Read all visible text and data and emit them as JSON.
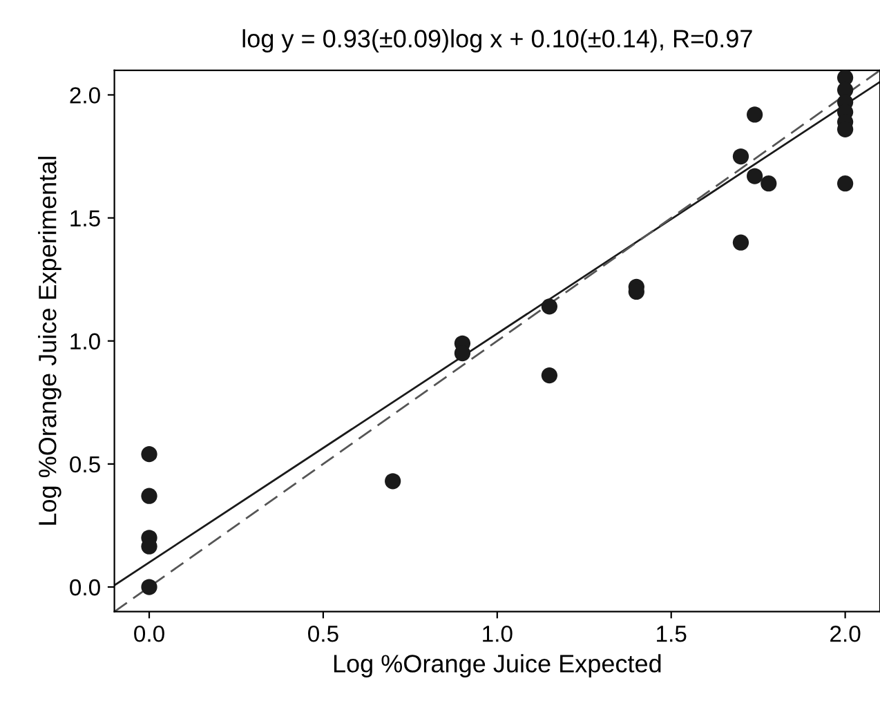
{
  "chart_data": {
    "type": "scatter",
    "title": "log y = 0.93(±0.09)log x + 0.10(±0.14), R=0.97",
    "xlabel": "Log %Orange Juice Expected",
    "ylabel": "Log %Orange Juice Experimental",
    "xlim": [
      -0.1,
      2.1
    ],
    "ylim": [
      -0.1,
      2.1
    ],
    "xticks": [
      {
        "value": 0,
        "label": "0.0"
      },
      0.5,
      {
        "value": 1,
        "label": "1.0"
      },
      1.5,
      {
        "value": 2,
        "label": "2.0"
      }
    ],
    "yticks": [
      {
        "value": 0,
        "label": "0.0"
      },
      0.5,
      {
        "value": 1,
        "label": "1.0"
      },
      1.5,
      {
        "value": 2,
        "label": "2.0"
      }
    ],
    "grid": false,
    "legend": false,
    "series": [
      {
        "color": "#1a1a1a",
        "marker": "circle",
        "x": [
          0,
          0,
          0,
          0,
          0,
          0.7,
          0.9,
          0.9,
          1.15,
          1.15,
          1.4,
          1.4,
          1.7,
          1.7,
          1.74,
          1.74,
          1.78,
          2,
          2,
          2,
          2,
          2,
          2,
          2
        ],
        "values": [
          0.54,
          0.37,
          0.2,
          0.165,
          0.0,
          0.43,
          0.99,
          0.95,
          1.14,
          0.86,
          1.22,
          1.2,
          1.75,
          1.4,
          1.92,
          1.67,
          1.64,
          2.07,
          2.02,
          1.97,
          1.93,
          1.89,
          1.86,
          1.64
        ]
      },
      {
        "type": "line",
        "color": "#1a1a1a",
        "line_style": "solid",
        "x": [
          -0.1,
          2.1
        ],
        "values": [
          0.007,
          2.053
        ]
      },
      {
        "type": "line",
        "color": "#555555",
        "line_style": "dashed",
        "x": [
          -0.1,
          2.1
        ],
        "values": [
          -0.1,
          2.1
        ]
      }
    ]
  }
}
